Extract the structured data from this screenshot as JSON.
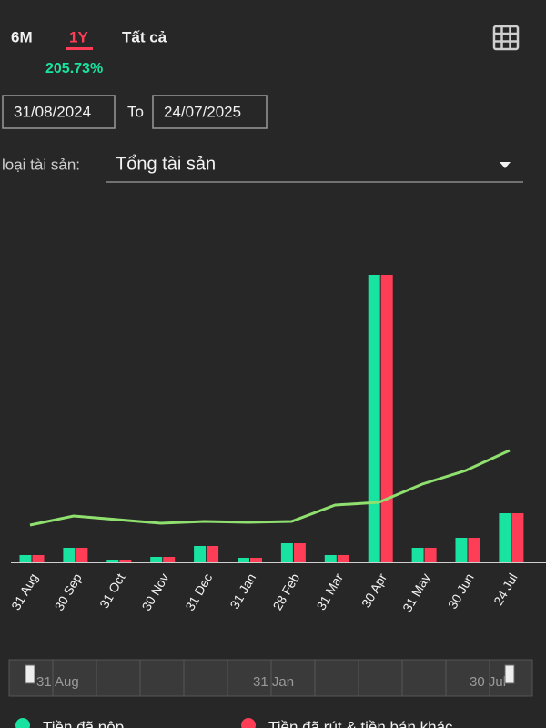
{
  "tabs": [
    "6M",
    "1Y",
    "Tất cả"
  ],
  "return_pct": "205.73%",
  "date_from": "31/08/2024",
  "date_to_label": "To",
  "date_to": "24/07/2025",
  "asset_type_label": "loại tài sản:",
  "asset_type_value": "Tổng tài sản",
  "navigator": {
    "labels": [
      "31 Aug",
      "31 Jan",
      "30 Jul"
    ]
  },
  "chart_data": {
    "type": "bar",
    "categories": [
      "31 Aug",
      "30 Sep",
      "31 Oct",
      "30 Nov",
      "31 Dec",
      "31 Jan",
      "28 Feb",
      "31 Mar",
      "30 Apr",
      "31 May",
      "30 Jun",
      "24 Jul"
    ],
    "series": [
      {
        "name": "Tiền đã nộp",
        "color": "#19e3a0",
        "values": [
          8,
          16,
          3,
          6,
          18,
          5,
          21,
          8,
          316,
          16,
          27,
          54
        ]
      },
      {
        "name": "Tiền đã rút & tiền bán khác",
        "color": "#ff3d57",
        "values": [
          8,
          16,
          3,
          6,
          18,
          5,
          21,
          8,
          316,
          16,
          27,
          54
        ]
      },
      {
        "type": "line",
        "color": "#8fe06e",
        "values": [
          41,
          51,
          47,
          43,
          45,
          44,
          45,
          63,
          66,
          86,
          101,
          123
        ]
      }
    ]
  }
}
